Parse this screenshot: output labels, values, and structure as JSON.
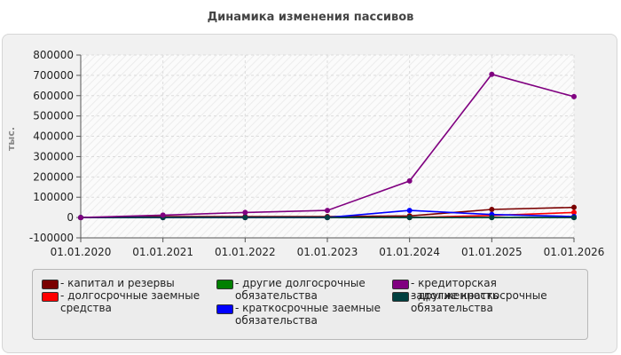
{
  "chart_data": {
    "type": "line",
    "title": "Динамика изменения пассивов",
    "ylabel": "тыс.",
    "xlabel": "",
    "x": [
      "01.01.2020",
      "01.01.2021",
      "01.01.2022",
      "01.01.2023",
      "01.01.2024",
      "01.01.2025",
      "01.01.2026"
    ],
    "ylim": [
      -100000,
      800000
    ],
    "yticks": [
      "-100000",
      "0",
      "100000",
      "200000",
      "300000",
      "400000",
      "500000",
      "600000",
      "700000",
      "800000"
    ],
    "grid": true,
    "legend_position": "bottom",
    "series": [
      {
        "name": "- капитал и резервы",
        "color": "#7a0000",
        "values": [
          0,
          5000,
          5000,
          5000,
          8000,
          40000,
          50000
        ]
      },
      {
        "name": "- долгосрочные заемные\nсредства",
        "color": "#ff0000",
        "values": [
          0,
          0,
          0,
          0,
          0,
          10000,
          25000
        ]
      },
      {
        "name": "- другие долгосрочные\nобязательства",
        "color": "#008000",
        "values": [
          0,
          0,
          0,
          0,
          0,
          0,
          0
        ]
      },
      {
        "name": "- краткосрочные заемные\nобязательства",
        "color": "#0000ff",
        "values": [
          0,
          0,
          0,
          0,
          35000,
          15000,
          5000
        ]
      },
      {
        "name": "- кредиторская задолженность",
        "color": "#800080",
        "values": [
          0,
          12000,
          25000,
          35000,
          180000,
          705000,
          595000
        ]
      },
      {
        "name": "- другие краткосрочные\nобязательства",
        "color": "#004040",
        "values": [
          0,
          0,
          0,
          0,
          0,
          0,
          0
        ]
      }
    ]
  }
}
